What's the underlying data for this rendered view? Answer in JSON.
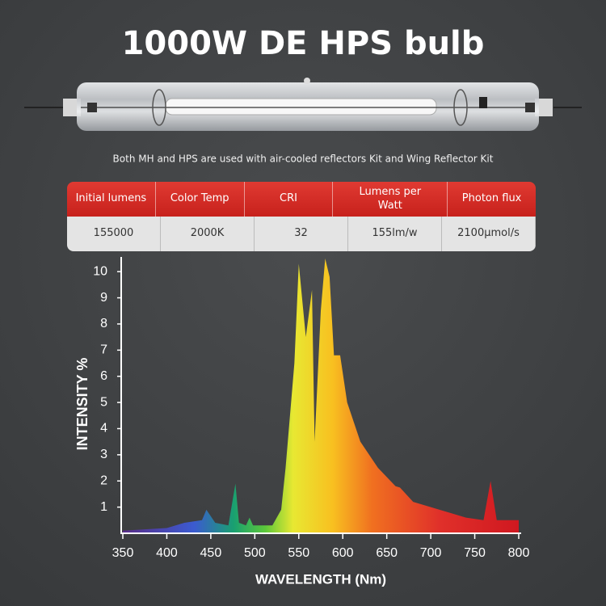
{
  "header": {
    "title": "1000W DE HPS bulb",
    "caption": "Both MH and HPS are used with air-cooled reflectors Kit and Wing Reflector Kit"
  },
  "table": {
    "columns": [
      "Initial lumens",
      "Color Temp",
      "CRI",
      "Lumens per Watt",
      "Photon flux"
    ],
    "rows": [
      [
        "155000",
        "2000K",
        "32",
        "155lm/w",
        "2100μmol/s"
      ]
    ]
  },
  "chart_data": {
    "type": "area",
    "x_label": "WAVELENGTH (Nm)",
    "y_label": "INTENSITY %",
    "x": [
      350,
      400,
      420,
      440,
      445,
      455,
      470,
      475,
      478,
      482,
      490,
      494,
      498,
      520,
      530,
      535,
      545,
      550,
      558,
      565,
      568,
      575,
      580,
      585,
      590,
      597,
      605,
      620,
      640,
      660,
      665,
      680,
      700,
      740,
      760,
      768,
      775,
      800
    ],
    "values": [
      0.1,
      0.2,
      0.4,
      0.5,
      0.9,
      0.4,
      0.3,
      1.3,
      1.9,
      0.4,
      0.3,
      0.6,
      0.3,
      0.3,
      0.9,
      2.5,
      6.5,
      10.3,
      7.5,
      9.3,
      3.5,
      8.5,
      10.5,
      9.8,
      6.8,
      6.8,
      5,
      3.5,
      2.5,
      1.8,
      1.75,
      1.2,
      1,
      0.6,
      0.5,
      2,
      0.5,
      0.5
    ],
    "xlim": [
      350,
      800
    ],
    "xticks": [
      350,
      400,
      450,
      500,
      550,
      600,
      650,
      700,
      750,
      800
    ],
    "ylim": [
      0,
      10.5
    ],
    "yticks": [
      1,
      2,
      3,
      4,
      5,
      6,
      7,
      8,
      9,
      10
    ]
  }
}
